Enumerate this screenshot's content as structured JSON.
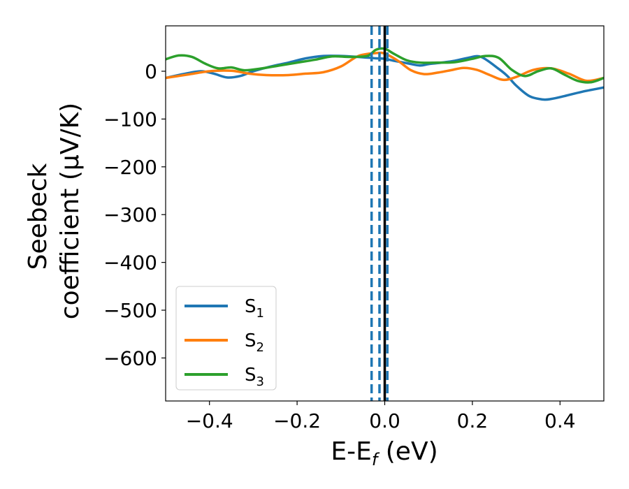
{
  "chart_data": {
    "type": "line",
    "xlabel": {
      "main": "E-E",
      "sub": "f",
      "suffix": " (eV)"
    },
    "ylabel": {
      "line1": "Seebeck",
      "line2": "coefficient  (μV/K)"
    },
    "xlim": [
      -0.5,
      0.5
    ],
    "ylim": [
      -690,
      95
    ],
    "xticks": [
      -0.4,
      -0.2,
      0.0,
      0.2,
      0.4
    ],
    "xtick_labels": [
      "−0.4",
      "−0.2",
      "0.0",
      "0.2",
      "0.4"
    ],
    "yticks": [
      0,
      -100,
      -200,
      -300,
      -400,
      -500,
      -600
    ],
    "ytick_labels": [
      "0",
      "−100",
      "−200",
      "−300",
      "−400",
      "−500",
      "−600"
    ],
    "grid": false,
    "legend_placement": "lower-left",
    "vlines": [
      {
        "x": -0.03,
        "style": "dashed",
        "color": "#1f77b4"
      },
      {
        "x": -0.012,
        "style": "dashed",
        "color": "#1f77b4"
      },
      {
        "x": 0.006,
        "style": "dashed",
        "color": "#1f77b4"
      },
      {
        "x": 0.0,
        "style": "solid",
        "color": "#000000"
      }
    ],
    "series": [
      {
        "name": "S",
        "sub": "1",
        "color": "#1f77b4",
        "x": [
          -0.5,
          -0.46,
          -0.42,
          -0.39,
          -0.36,
          -0.33,
          -0.3,
          -0.26,
          -0.22,
          -0.18,
          -0.14,
          -0.1,
          -0.06,
          -0.02,
          0.0,
          0.02,
          0.05,
          0.08,
          0.1,
          0.13,
          0.16,
          0.19,
          0.22,
          0.26,
          0.28,
          0.3,
          0.33,
          0.36,
          0.38,
          0.41,
          0.45,
          0.5
        ],
        "y": [
          -14,
          -6,
          0,
          -5,
          -13,
          -10,
          0,
          10,
          18,
          27,
          32,
          32,
          30,
          27,
          26,
          22,
          17,
          12,
          15,
          18,
          22,
          28,
          30,
          5,
          -10,
          -30,
          -52,
          -59,
          -58,
          -52,
          -43,
          -34
        ]
      },
      {
        "name": "S",
        "sub": "2",
        "color": "#ff7f0e",
        "x": [
          -0.5,
          -0.45,
          -0.4,
          -0.35,
          -0.31,
          -0.27,
          -0.22,
          -0.18,
          -0.14,
          -0.1,
          -0.06,
          -0.02,
          0.0,
          0.03,
          0.06,
          0.09,
          0.12,
          0.15,
          0.18,
          0.21,
          0.24,
          0.27,
          0.3,
          0.34,
          0.38,
          0.42,
          0.46,
          0.5
        ],
        "y": [
          -14,
          -7,
          0,
          1,
          -5,
          -8,
          -8,
          -5,
          -2,
          10,
          32,
          38,
          37,
          22,
          2,
          -6,
          -3,
          2,
          7,
          3,
          -8,
          -18,
          -12,
          3,
          6,
          -5,
          -20,
          -14
        ]
      },
      {
        "name": "S",
        "sub": "3",
        "color": "#2ca02c",
        "x": [
          -0.5,
          -0.47,
          -0.44,
          -0.41,
          -0.38,
          -0.35,
          -0.32,
          -0.28,
          -0.24,
          -0.2,
          -0.16,
          -0.12,
          -0.08,
          -0.04,
          -0.02,
          0.0,
          0.02,
          0.05,
          0.08,
          0.12,
          0.16,
          0.2,
          0.23,
          0.26,
          0.29,
          0.32,
          0.35,
          0.38,
          0.41,
          0.44,
          0.47,
          0.5
        ],
        "y": [
          25,
          33,
          30,
          16,
          6,
          8,
          2,
          6,
          12,
          18,
          24,
          31,
          30,
          32,
          45,
          47,
          37,
          23,
          18,
          18,
          19,
          26,
          32,
          28,
          3,
          -10,
          0,
          6,
          -7,
          -20,
          -23,
          -14
        ]
      }
    ]
  }
}
